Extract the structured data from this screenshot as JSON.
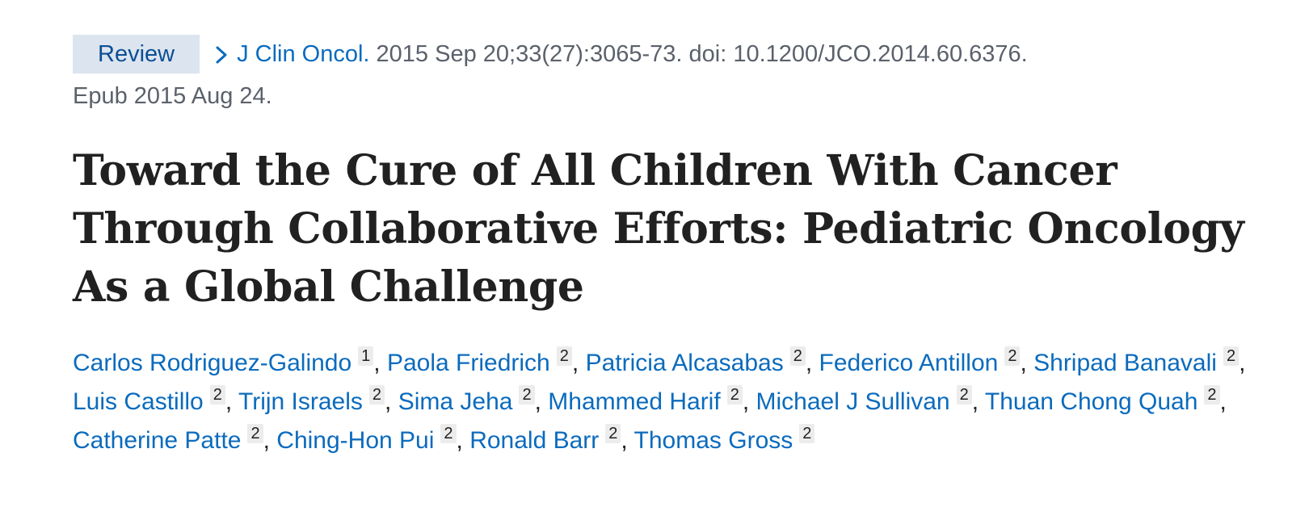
{
  "citation": {
    "badge": "Review",
    "journal": "J Clin Oncol.",
    "details": " 2015 Sep 20;33(27):3065-73. doi: 10.1200/JCO.2014.60.6376.",
    "epub": "Epub 2015 Aug 24."
  },
  "title": "Toward the Cure of All Children With Cancer Through Collaborative Efforts: Pediatric Oncology As a Global Challenge",
  "authors": [
    {
      "name": "Carlos Rodriguez-Galindo",
      "aff": "1"
    },
    {
      "name": "Paola Friedrich",
      "aff": "2"
    },
    {
      "name": "Patricia Alcasabas",
      "aff": "2"
    },
    {
      "name": "Federico Antillon",
      "aff": "2"
    },
    {
      "name": "Shripad Banavali",
      "aff": "2"
    },
    {
      "name": "Luis Castillo",
      "aff": "2"
    },
    {
      "name": "Trijn Israels",
      "aff": "2"
    },
    {
      "name": "Sima Jeha",
      "aff": "2"
    },
    {
      "name": "Mhammed Harif",
      "aff": "2"
    },
    {
      "name": "Michael J Sullivan",
      "aff": "2"
    },
    {
      "name": "Thuan Chong Quah",
      "aff": "2"
    },
    {
      "name": "Catherine Patte",
      "aff": "2"
    },
    {
      "name": "Ching-Hon Pui",
      "aff": "2"
    },
    {
      "name": "Ronald Barr",
      "aff": "2"
    },
    {
      "name": "Thomas Gross",
      "aff": "2"
    }
  ],
  "colors": {
    "link": "#0b6bbd",
    "badge_bg": "#dce4ef",
    "badge_text": "#0b4f94",
    "meta_text": "#5b616b"
  },
  "icons": {
    "breadcrumb": "chevron-right-icon"
  }
}
